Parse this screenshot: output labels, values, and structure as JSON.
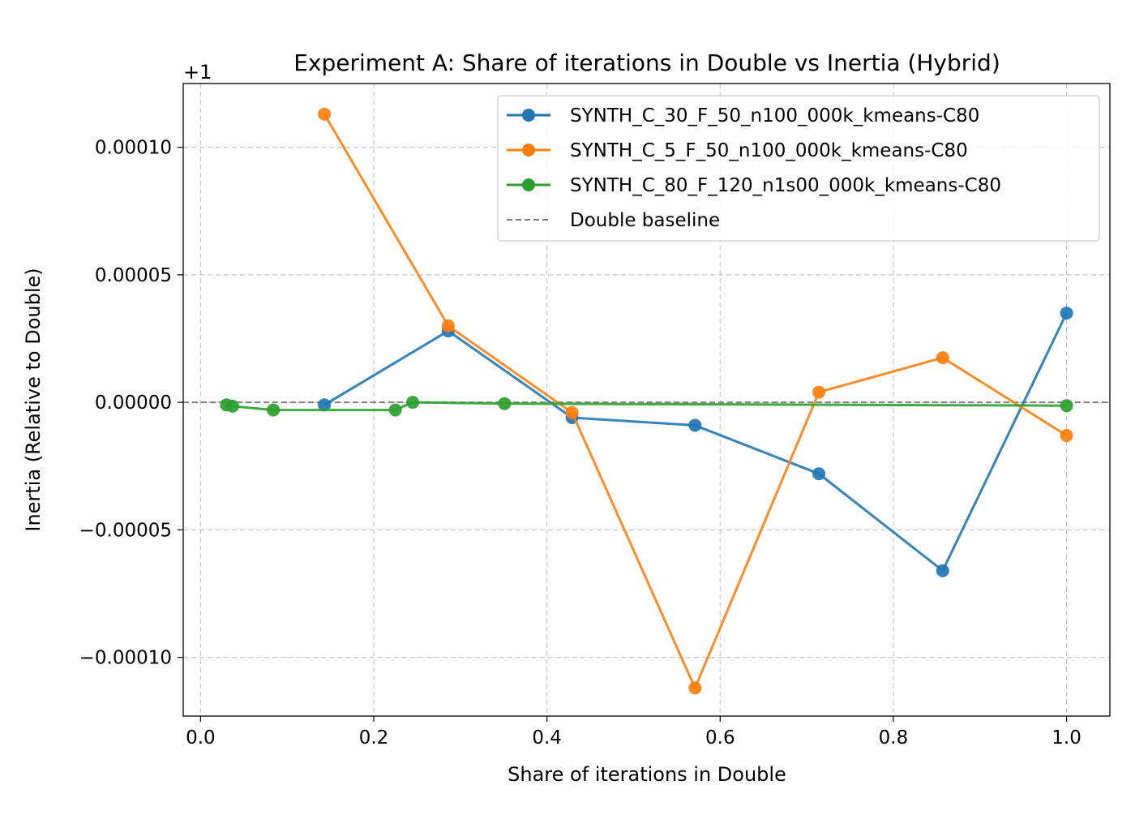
{
  "chart_data": {
    "type": "line",
    "title": "Experiment A: Share of iterations in Double vs Inertia (Hybrid)",
    "xlabel": "Share of iterations in Double",
    "ylabel": "Inertia (Relative to Double)",
    "y_offset_label": "+1",
    "xlim": [
      -0.02,
      1.05
    ],
    "ylim": [
      -0.000123,
      0.000125
    ],
    "xticks": [
      0.0,
      0.2,
      0.4,
      0.6,
      0.8,
      1.0
    ],
    "xtick_labels": [
      "0.0",
      "0.2",
      "0.4",
      "0.6",
      "0.8",
      "1.0"
    ],
    "yticks": [
      0.0001,
      5e-05,
      0.0,
      -5e-05,
      -0.0001
    ],
    "ytick_labels": [
      "0.00010",
      "0.00005",
      "0.00000",
      "−0.00005",
      "−0.00010"
    ],
    "grid": true,
    "legend_position": "top-right",
    "series": [
      {
        "name": "SYNTH_C_30_F_50_n100_000k_kmeans-C80",
        "color": "#1f77b4",
        "x": [
          0.143,
          0.286,
          0.429,
          0.571,
          0.714,
          0.857,
          1.0
        ],
        "y": [
          -1e-06,
          2.8e-05,
          -6e-06,
          -9e-06,
          -2.8e-05,
          -6.6e-05,
          3.5e-05
        ]
      },
      {
        "name": "SYNTH_C_5_F_50_n100_000k_kmeans-C80",
        "color": "#ff7f0e",
        "x": [
          0.143,
          0.286,
          0.429,
          0.571,
          0.714,
          0.857,
          1.0
        ],
        "y": [
          0.000113,
          3e-05,
          -4e-06,
          -0.000112,
          4e-06,
          1.75e-05,
          -1.3e-05
        ]
      },
      {
        "name": "SYNTH_C_80_F_120_n1s00_000k_kmeans-C80",
        "color": "#2ca02c",
        "x": [
          0.03,
          0.037,
          0.084,
          0.225,
          0.245,
          0.351,
          1.0
        ],
        "y": [
          -1e-06,
          -1.5e-06,
          -3e-06,
          -3e-06,
          0.0,
          -5e-07,
          -1.3e-06
        ]
      }
    ],
    "baseline": {
      "name": "Double baseline",
      "value": 0.0,
      "color": "#808080"
    }
  }
}
